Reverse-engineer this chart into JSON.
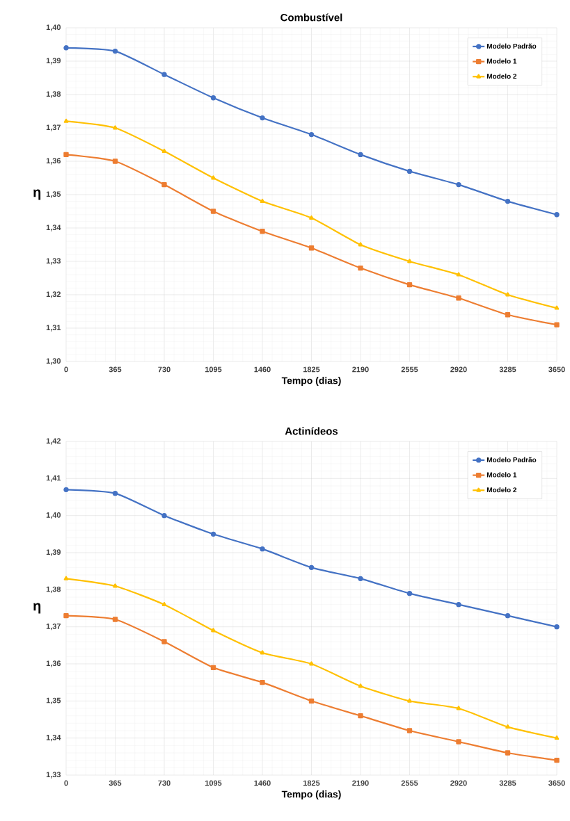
{
  "chart_data": [
    {
      "type": "line",
      "title": "Combustível",
      "xlabel": "Tempo (dias)",
      "ylabel": "η",
      "x": [
        0,
        365,
        730,
        1095,
        1460,
        1825,
        2190,
        2555,
        2920,
        3285,
        3650
      ],
      "series": [
        {
          "name": "Modelo Padrão",
          "color": "#4472c4",
          "marker": "circle",
          "values": [
            1.394,
            1.393,
            1.386,
            1.379,
            1.373,
            1.368,
            1.362,
            1.357,
            1.353,
            1.348,
            1.344
          ]
        },
        {
          "name": "Modelo 1",
          "color": "#ed7d31",
          "marker": "square",
          "values": [
            1.362,
            1.36,
            1.353,
            1.345,
            1.339,
            1.334,
            1.328,
            1.323,
            1.319,
            1.314,
            1.311
          ]
        },
        {
          "name": "Modelo 2",
          "color": "#ffc000",
          "marker": "triangle",
          "values": [
            1.372,
            1.37,
            1.363,
            1.355,
            1.348,
            1.343,
            1.335,
            1.33,
            1.326,
            1.32,
            1.316
          ]
        }
      ],
      "xlim": [
        0,
        3650
      ],
      "xticks": [
        0,
        365,
        730,
        1095,
        1460,
        1825,
        2190,
        2555,
        2920,
        3285,
        3650
      ],
      "ylim": [
        1.3,
        1.4
      ],
      "yticks": [
        {
          "value": 1.3,
          "label": "1,30"
        },
        {
          "value": 1.31,
          "label": "1,31"
        },
        {
          "value": 1.32,
          "label": "1,32"
        },
        {
          "value": 1.33,
          "label": "1,33"
        },
        {
          "value": 1.34,
          "label": "1,34"
        },
        {
          "value": 1.35,
          "label": "1,35"
        },
        {
          "value": 1.36,
          "label": "1,36"
        },
        {
          "value": 1.37,
          "label": "1,37"
        },
        {
          "value": 1.38,
          "label": "1,38"
        },
        {
          "value": 1.39,
          "label": "1,39"
        },
        {
          "value": 1.4,
          "label": "1,40"
        }
      ],
      "grid": true,
      "legend": "top right"
    },
    {
      "type": "line",
      "title": "Actinídeos",
      "xlabel": "Tempo (dias)",
      "ylabel": "η",
      "x": [
        0,
        365,
        730,
        1095,
        1460,
        1825,
        2190,
        2555,
        2920,
        3285,
        3650
      ],
      "series": [
        {
          "name": "Modelo Padrão",
          "color": "#4472c4",
          "marker": "circle",
          "values": [
            1.407,
            1.406,
            1.4,
            1.395,
            1.391,
            1.386,
            1.383,
            1.379,
            1.376,
            1.373,
            1.37
          ]
        },
        {
          "name": "Modelo 1",
          "color": "#ed7d31",
          "marker": "square",
          "values": [
            1.373,
            1.372,
            1.366,
            1.359,
            1.355,
            1.35,
            1.346,
            1.342,
            1.339,
            1.336,
            1.334
          ]
        },
        {
          "name": "Modelo 2",
          "color": "#ffc000",
          "marker": "triangle",
          "values": [
            1.383,
            1.381,
            1.376,
            1.369,
            1.363,
            1.36,
            1.354,
            1.35,
            1.348,
            1.343,
            1.34
          ]
        }
      ],
      "xlim": [
        0,
        3650
      ],
      "xticks": [
        0,
        365,
        730,
        1095,
        1460,
        1825,
        2190,
        2555,
        2920,
        3285,
        3650
      ],
      "ylim": [
        1.33,
        1.42
      ],
      "yticks": [
        {
          "value": 1.33,
          "label": "1,33"
        },
        {
          "value": 1.34,
          "label": "1,34"
        },
        {
          "value": 1.35,
          "label": "1,35"
        },
        {
          "value": 1.36,
          "label": "1,36"
        },
        {
          "value": 1.37,
          "label": "1,37"
        },
        {
          "value": 1.38,
          "label": "1,38"
        },
        {
          "value": 1.39,
          "label": "1,39"
        },
        {
          "value": 1.4,
          "label": "1,40"
        },
        {
          "value": 1.41,
          "label": "1,41"
        },
        {
          "value": 1.42,
          "label": "1,42"
        }
      ],
      "grid": true,
      "legend": "top right"
    }
  ]
}
